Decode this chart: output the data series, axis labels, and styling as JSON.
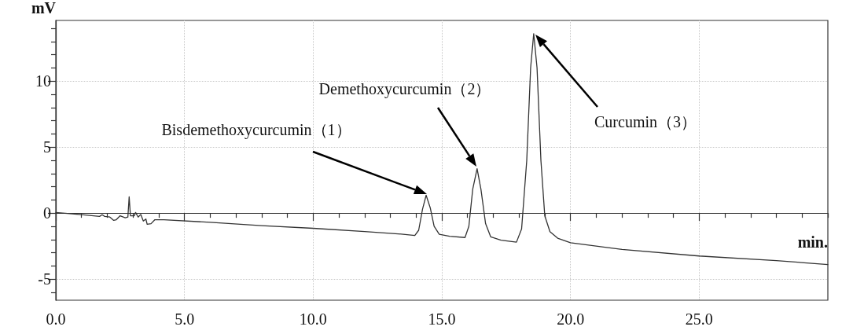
{
  "chart_data": {
    "type": "line",
    "xlabel": "min.",
    "ylabel": "mV",
    "x": [
      0,
      1,
      1.7,
      1.8,
      1.9,
      2.1,
      2.25,
      2.35,
      2.5,
      2.7,
      2.8,
      2.85,
      2.9,
      3.05,
      3.1,
      3.2,
      3.3,
      3.4,
      3.5,
      3.55,
      3.7,
      3.85,
      4.2,
      6,
      8,
      10,
      12,
      13.5,
      13.95,
      14.1,
      14.25,
      14.39,
      14.55,
      14.7,
      14.9,
      15.3,
      15.9,
      16.05,
      16.2,
      16.37,
      16.52,
      16.7,
      16.9,
      17.3,
      17.9,
      18.1,
      18.3,
      18.45,
      18.57,
      18.7,
      18.85,
      19.0,
      19.2,
      19.5,
      20,
      22,
      25,
      28,
      30
    ],
    "series": [
      {
        "color": "#333333",
        "values": [
          0.05,
          -0.12,
          -0.25,
          -0.12,
          -0.25,
          -0.3,
          -0.55,
          -0.5,
          -0.2,
          -0.35,
          -0.3,
          1.23,
          -0.2,
          -0.2,
          0.05,
          -0.3,
          -0.1,
          -0.6,
          -0.45,
          -0.85,
          -0.8,
          -0.5,
          -0.5,
          -0.7,
          -0.95,
          -1.15,
          -1.4,
          -1.6,
          -1.7,
          -1.3,
          0.3,
          1.35,
          0.4,
          -1.0,
          -1.6,
          -1.75,
          -1.85,
          -1.0,
          1.8,
          3.37,
          1.8,
          -0.8,
          -1.8,
          -2.05,
          -2.2,
          -1.2,
          4,
          11,
          13.6,
          11,
          4,
          -0.2,
          -1.4,
          -1.9,
          -2.25,
          -2.75,
          -3.25,
          -3.6,
          -3.9
        ]
      }
    ],
    "xlim": [
      0,
      30
    ],
    "xticks": [
      {
        "value": 0,
        "label": "0.0"
      },
      {
        "value": 1,
        "label": null
      },
      {
        "value": 2,
        "label": null
      },
      {
        "value": 3,
        "label": null
      },
      {
        "value": 4,
        "label": null
      },
      {
        "value": 5,
        "label": "5.0"
      },
      {
        "value": 6,
        "label": null
      },
      {
        "value": 7,
        "label": null
      },
      {
        "value": 8,
        "label": null
      },
      {
        "value": 9,
        "label": null
      },
      {
        "value": 10,
        "label": "10.0"
      },
      {
        "value": 11,
        "label": null
      },
      {
        "value": 12,
        "label": null
      },
      {
        "value": 13,
        "label": null
      },
      {
        "value": 14,
        "label": null
      },
      {
        "value": 15,
        "label": "15.0"
      },
      {
        "value": 16,
        "label": null
      },
      {
        "value": 17,
        "label": null
      },
      {
        "value": 18,
        "label": null
      },
      {
        "value": 19,
        "label": null
      },
      {
        "value": 20,
        "label": "20.0"
      },
      {
        "value": 21,
        "label": null
      },
      {
        "value": 22,
        "label": null
      },
      {
        "value": 23,
        "label": null
      },
      {
        "value": 24,
        "label": null
      },
      {
        "value": 25,
        "label": "25.0"
      },
      {
        "value": 26,
        "label": null
      },
      {
        "value": 27,
        "label": null
      },
      {
        "value": 28,
        "label": null
      },
      {
        "value": 29,
        "label": null
      },
      {
        "value": 30,
        "label": null
      }
    ],
    "ylim": [
      -6.6,
      14.6
    ],
    "yticks": [
      {
        "value": -6,
        "label": null
      },
      -5,
      {
        "value": -4,
        "label": null
      },
      {
        "value": -3,
        "label": null
      },
      {
        "value": -2,
        "label": null
      },
      {
        "value": -1,
        "label": null
      },
      0,
      {
        "value": 1,
        "label": null
      },
      {
        "value": 2,
        "label": null
      },
      {
        "value": 3,
        "label": null
      },
      {
        "value": 4,
        "label": null
      },
      5,
      {
        "value": 6,
        "label": null
      },
      {
        "value": 7,
        "label": null
      },
      {
        "value": 8,
        "label": null
      },
      {
        "value": 9,
        "label": null
      },
      10,
      {
        "value": 11,
        "label": null
      },
      {
        "value": 12,
        "label": null
      },
      {
        "value": 13,
        "label": null
      },
      {
        "value": 14,
        "label": null
      }
    ],
    "grid": true,
    "marker": "none",
    "line_style": "solid",
    "annotations": [
      "Bisdemethoxycurcumin（1）",
      "Demethoxycurcumin（2）",
      "Curcumin（3）"
    ]
  }
}
